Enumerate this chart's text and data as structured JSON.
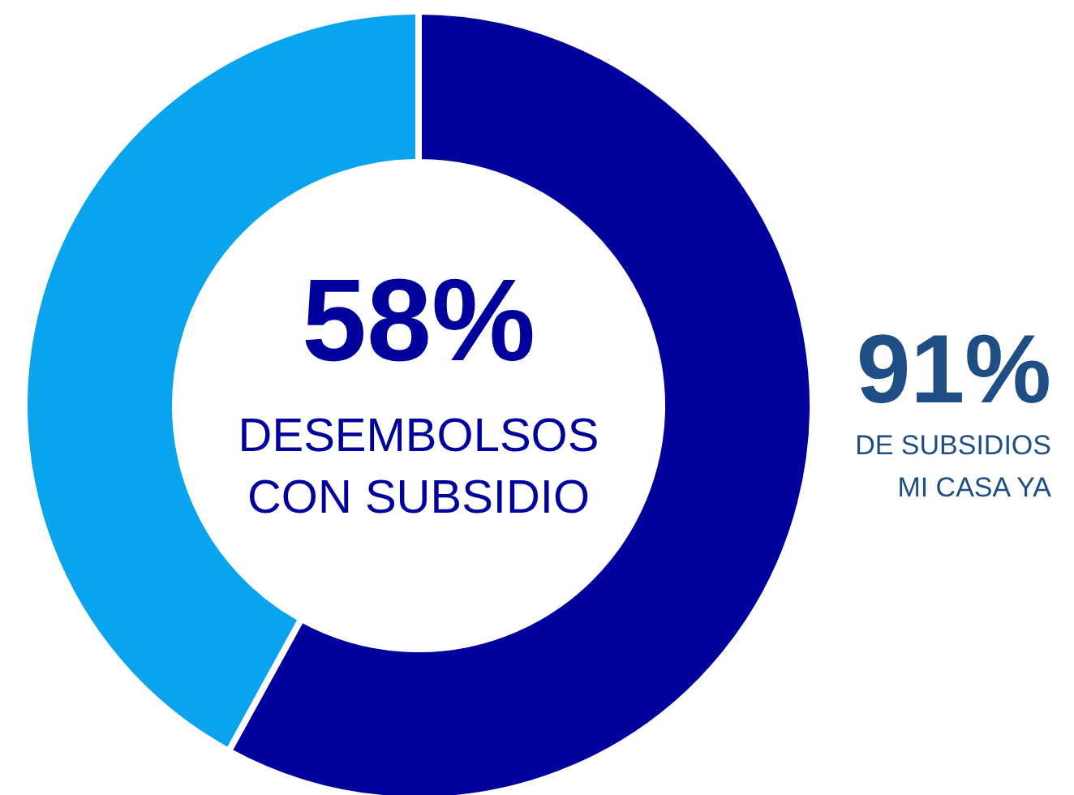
{
  "chart_data": {
    "type": "donut",
    "categories": [
      "DESEMBOLSOS CON SUBSIDIO",
      null
    ],
    "values": [
      58,
      42
    ],
    "colors": [
      "#00009c",
      "#0aa4ee"
    ],
    "value_labels": [
      "58%",
      null
    ],
    "annotations": [
      "91%",
      "DE SUBSIDIOS MI CASA YA"
    ]
  }
}
